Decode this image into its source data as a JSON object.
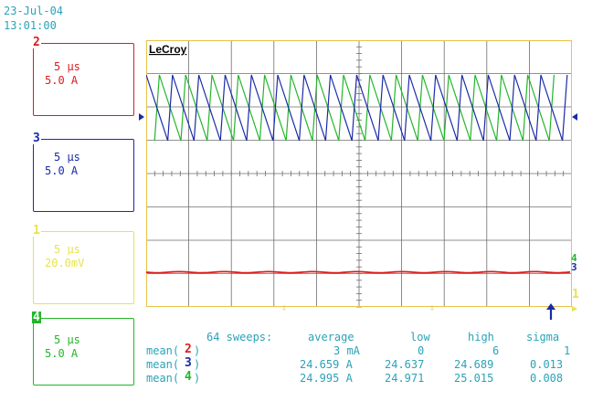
{
  "header": {
    "date": "23-Jul-04",
    "time": "13:01:00"
  },
  "logo": "LeCroy",
  "colors": {
    "ch1": "#e8e34a",
    "ch2": "#d81e1e",
    "ch3": "#1a2aa8",
    "ch4": "#22b52a",
    "grid": "#6e6e6e",
    "frame": "#e8c24a",
    "text": "#2aa3b8"
  },
  "channels": [
    {
      "id": "2",
      "time": "5 µs",
      "scale": "5.0 A"
    },
    {
      "id": "3",
      "time": "5 µs",
      "scale": "5.0 A"
    },
    {
      "id": "1",
      "time": "5 µs",
      "scale": "20.0mV"
    },
    {
      "id": "4",
      "time": "5 µs",
      "scale": "5.0 A"
    }
  ],
  "markers": {
    "ch1": "1",
    "ch4": "4",
    "ch3": "3"
  },
  "measurements": {
    "sweeps": "64 sweeps:",
    "headers": [
      "average",
      "low",
      "high",
      "sigma"
    ],
    "rows": [
      {
        "label_pre": "mean(",
        "ch": "2",
        "label_post": ")",
        "average": "3 mA",
        "low": "0",
        "high": "6",
        "sigma": "1"
      },
      {
        "label_pre": "mean(",
        "ch": "3",
        "label_post": ")",
        "average": "24.659 A",
        "low": "24.637",
        "high": "24.689",
        "sigma": "0.013"
      },
      {
        "label_pre": "mean(",
        "ch": "4",
        "label_post": ")",
        "average": "24.995 A",
        "low": "24.971",
        "high": "25.015",
        "sigma": "0.008"
      }
    ]
  }
}
